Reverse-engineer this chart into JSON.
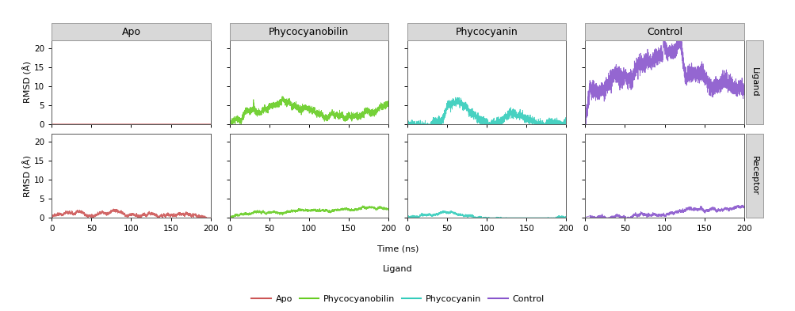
{
  "columns": [
    "Apo",
    "Phycocyanobilin",
    "Phycocyanin",
    "Control"
  ],
  "row_labels": [
    "Ligand",
    "Receptor"
  ],
  "colors": {
    "Apo": "#cc5555",
    "Phycocyanobilin": "#66cc22",
    "Phycocyanin": "#33ccbb",
    "Control": "#8855cc"
  },
  "ylim": [
    0,
    22
  ],
  "xlim": [
    0,
    200
  ],
  "xticks": [
    0,
    50,
    100,
    150,
    200
  ],
  "yticks": [
    0,
    5,
    10,
    15,
    20
  ],
  "xlabel": "Time (ns)",
  "ylabel": "RMSD (Å)",
  "legend_title": "Ligand",
  "legend_entries": [
    "Apo",
    "Phycocyanobilin",
    "Phycocyanin",
    "Control"
  ],
  "title_fontsize": 9,
  "axis_fontsize": 8,
  "tick_fontsize": 7.5,
  "background_color": "#ffffff",
  "panel_header_color": "#d8d8d8"
}
